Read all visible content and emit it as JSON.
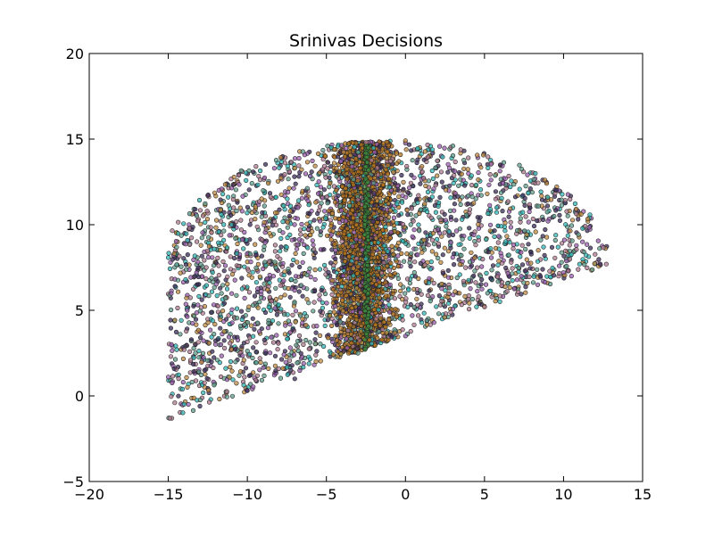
{
  "chart_data": {
    "type": "scatter",
    "title": "Srinivas Decisions",
    "xlabel": "",
    "ylabel": "",
    "xlim": [
      -20,
      15
    ],
    "ylim": [
      -5,
      20
    ],
    "x_ticks": [
      -20,
      -15,
      -10,
      -5,
      0,
      5,
      10,
      15
    ],
    "y_ticks": [
      -5,
      0,
      5,
      10,
      15,
      20
    ],
    "x_tick_labels": [
      "−20",
      "−15",
      "−10",
      "−5",
      "0",
      "5",
      "10",
      "15"
    ],
    "y_tick_labels": [
      "−5",
      "0",
      "5",
      "10",
      "15",
      "20"
    ],
    "grid": false,
    "legend": "none",
    "marker_colors": [
      "#2fb5b5",
      "#9b5fb0",
      "#c08a3e",
      "#3a2a5a",
      "#5e9e8c",
      "#b07a90"
    ],
    "dense_band_color": "#b5741e",
    "center_line_color": "#3d8a3d",
    "points": [
      {
        "x": -14.9,
        "y": -1.3
      },
      {
        "x": -15.0,
        "y": 1.1
      },
      {
        "x": -14.8,
        "y": 3.0
      },
      {
        "x": -13.8,
        "y": 5.0
      },
      {
        "x": -12.6,
        "y": 7.5
      },
      {
        "x": -11.0,
        "y": 10.0
      },
      {
        "x": -9.0,
        "y": 12.0
      },
      {
        "x": -7.0,
        "y": 13.3
      },
      {
        "x": -4.5,
        "y": 14.4
      },
      {
        "x": -2.5,
        "y": 14.8
      },
      {
        "x": 0.0,
        "y": 14.9
      },
      {
        "x": 3.0,
        "y": 14.6
      },
      {
        "x": 6.0,
        "y": 13.5
      },
      {
        "x": 9.0,
        "y": 11.6
      },
      {
        "x": 11.2,
        "y": 9.0
      },
      {
        "x": 12.7,
        "y": 7.7
      },
      {
        "x": 10.5,
        "y": 7.0
      },
      {
        "x": 5.0,
        "y": 5.2
      },
      {
        "x": 0.0,
        "y": 3.5
      },
      {
        "x": -3.0,
        "y": 2.5
      },
      {
        "x": -7.0,
        "y": 1.0
      },
      {
        "x": -10.0,
        "y": 0.3
      },
      {
        "x": -13.0,
        "y": -0.6
      },
      {
        "x": -2.5,
        "y": 8.0
      }
    ]
  }
}
